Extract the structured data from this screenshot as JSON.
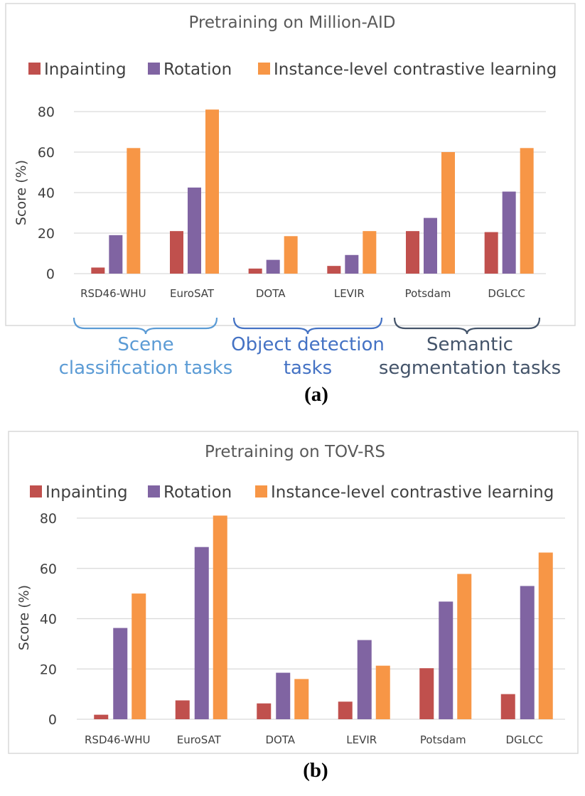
{
  "colors": {
    "inpainting": "#C0504D",
    "rotation": "#8064A2",
    "contrastive": "#F79646",
    "grid": "#d9d9d9",
    "frame": "#d9d9d9",
    "scene_group": "#5B9BD5",
    "detection_group": "#4472C4",
    "segmentation_group": "#44546A"
  },
  "captions": [
    "(a)",
    "(b)"
  ],
  "task_groups": [
    {
      "lines": [
        "Scene",
        "classification tasks"
      ],
      "color_key": "scene_group"
    },
    {
      "lines": [
        "Object detection",
        "tasks"
      ],
      "color_key": "detection_group"
    },
    {
      "lines": [
        "Semantic",
        "segmentation tasks"
      ],
      "color_key": "segmentation_group"
    }
  ],
  "chart_data": [
    {
      "type": "bar",
      "title": "Pretraining on Million-AID",
      "xlabel": "",
      "ylabel": "Score (%)",
      "ylim": [
        0,
        80
      ],
      "yticks": [
        0,
        20,
        40,
        60,
        80
      ],
      "grid": true,
      "legend_position": "top",
      "categories": [
        "RSD46-WHU",
        "EuroSAT",
        "DOTA",
        "LEVIR",
        "Potsdam",
        "DGLCC"
      ],
      "series": [
        {
          "name": "Inpainting",
          "color_key": "inpainting",
          "values": [
            3,
            21,
            2.5,
            3.8,
            21,
            20.5
          ]
        },
        {
          "name": "Rotation",
          "color_key": "rotation",
          "values": [
            19,
            42.5,
            6.8,
            9.2,
            27.5,
            40.5
          ]
        },
        {
          "name": "Instance-level contrastive learning",
          "color_key": "contrastive",
          "values": [
            62,
            81,
            18.5,
            21,
            60,
            62
          ]
        }
      ]
    },
    {
      "type": "bar",
      "title": "Pretraining on TOV-RS",
      "xlabel": "",
      "ylabel": "Score (%)",
      "ylim": [
        0,
        80
      ],
      "yticks": [
        0,
        20,
        40,
        60,
        80
      ],
      "grid": true,
      "legend_position": "top",
      "categories": [
        "RSD46-WHU",
        "EuroSAT",
        "DOTA",
        "LEVIR",
        "Potsdam",
        "DGLCC"
      ],
      "series": [
        {
          "name": "Inpainting",
          "color_key": "inpainting",
          "values": [
            1.8,
            7.5,
            6.3,
            7,
            20.3,
            10
          ]
        },
        {
          "name": "Rotation",
          "color_key": "rotation",
          "values": [
            36.3,
            68.5,
            18.5,
            31.5,
            46.8,
            53
          ]
        },
        {
          "name": "Instance-level contrastive learning",
          "color_key": "contrastive",
          "values": [
            50,
            81,
            16,
            21.3,
            57.8,
            66.3
          ]
        }
      ]
    }
  ]
}
